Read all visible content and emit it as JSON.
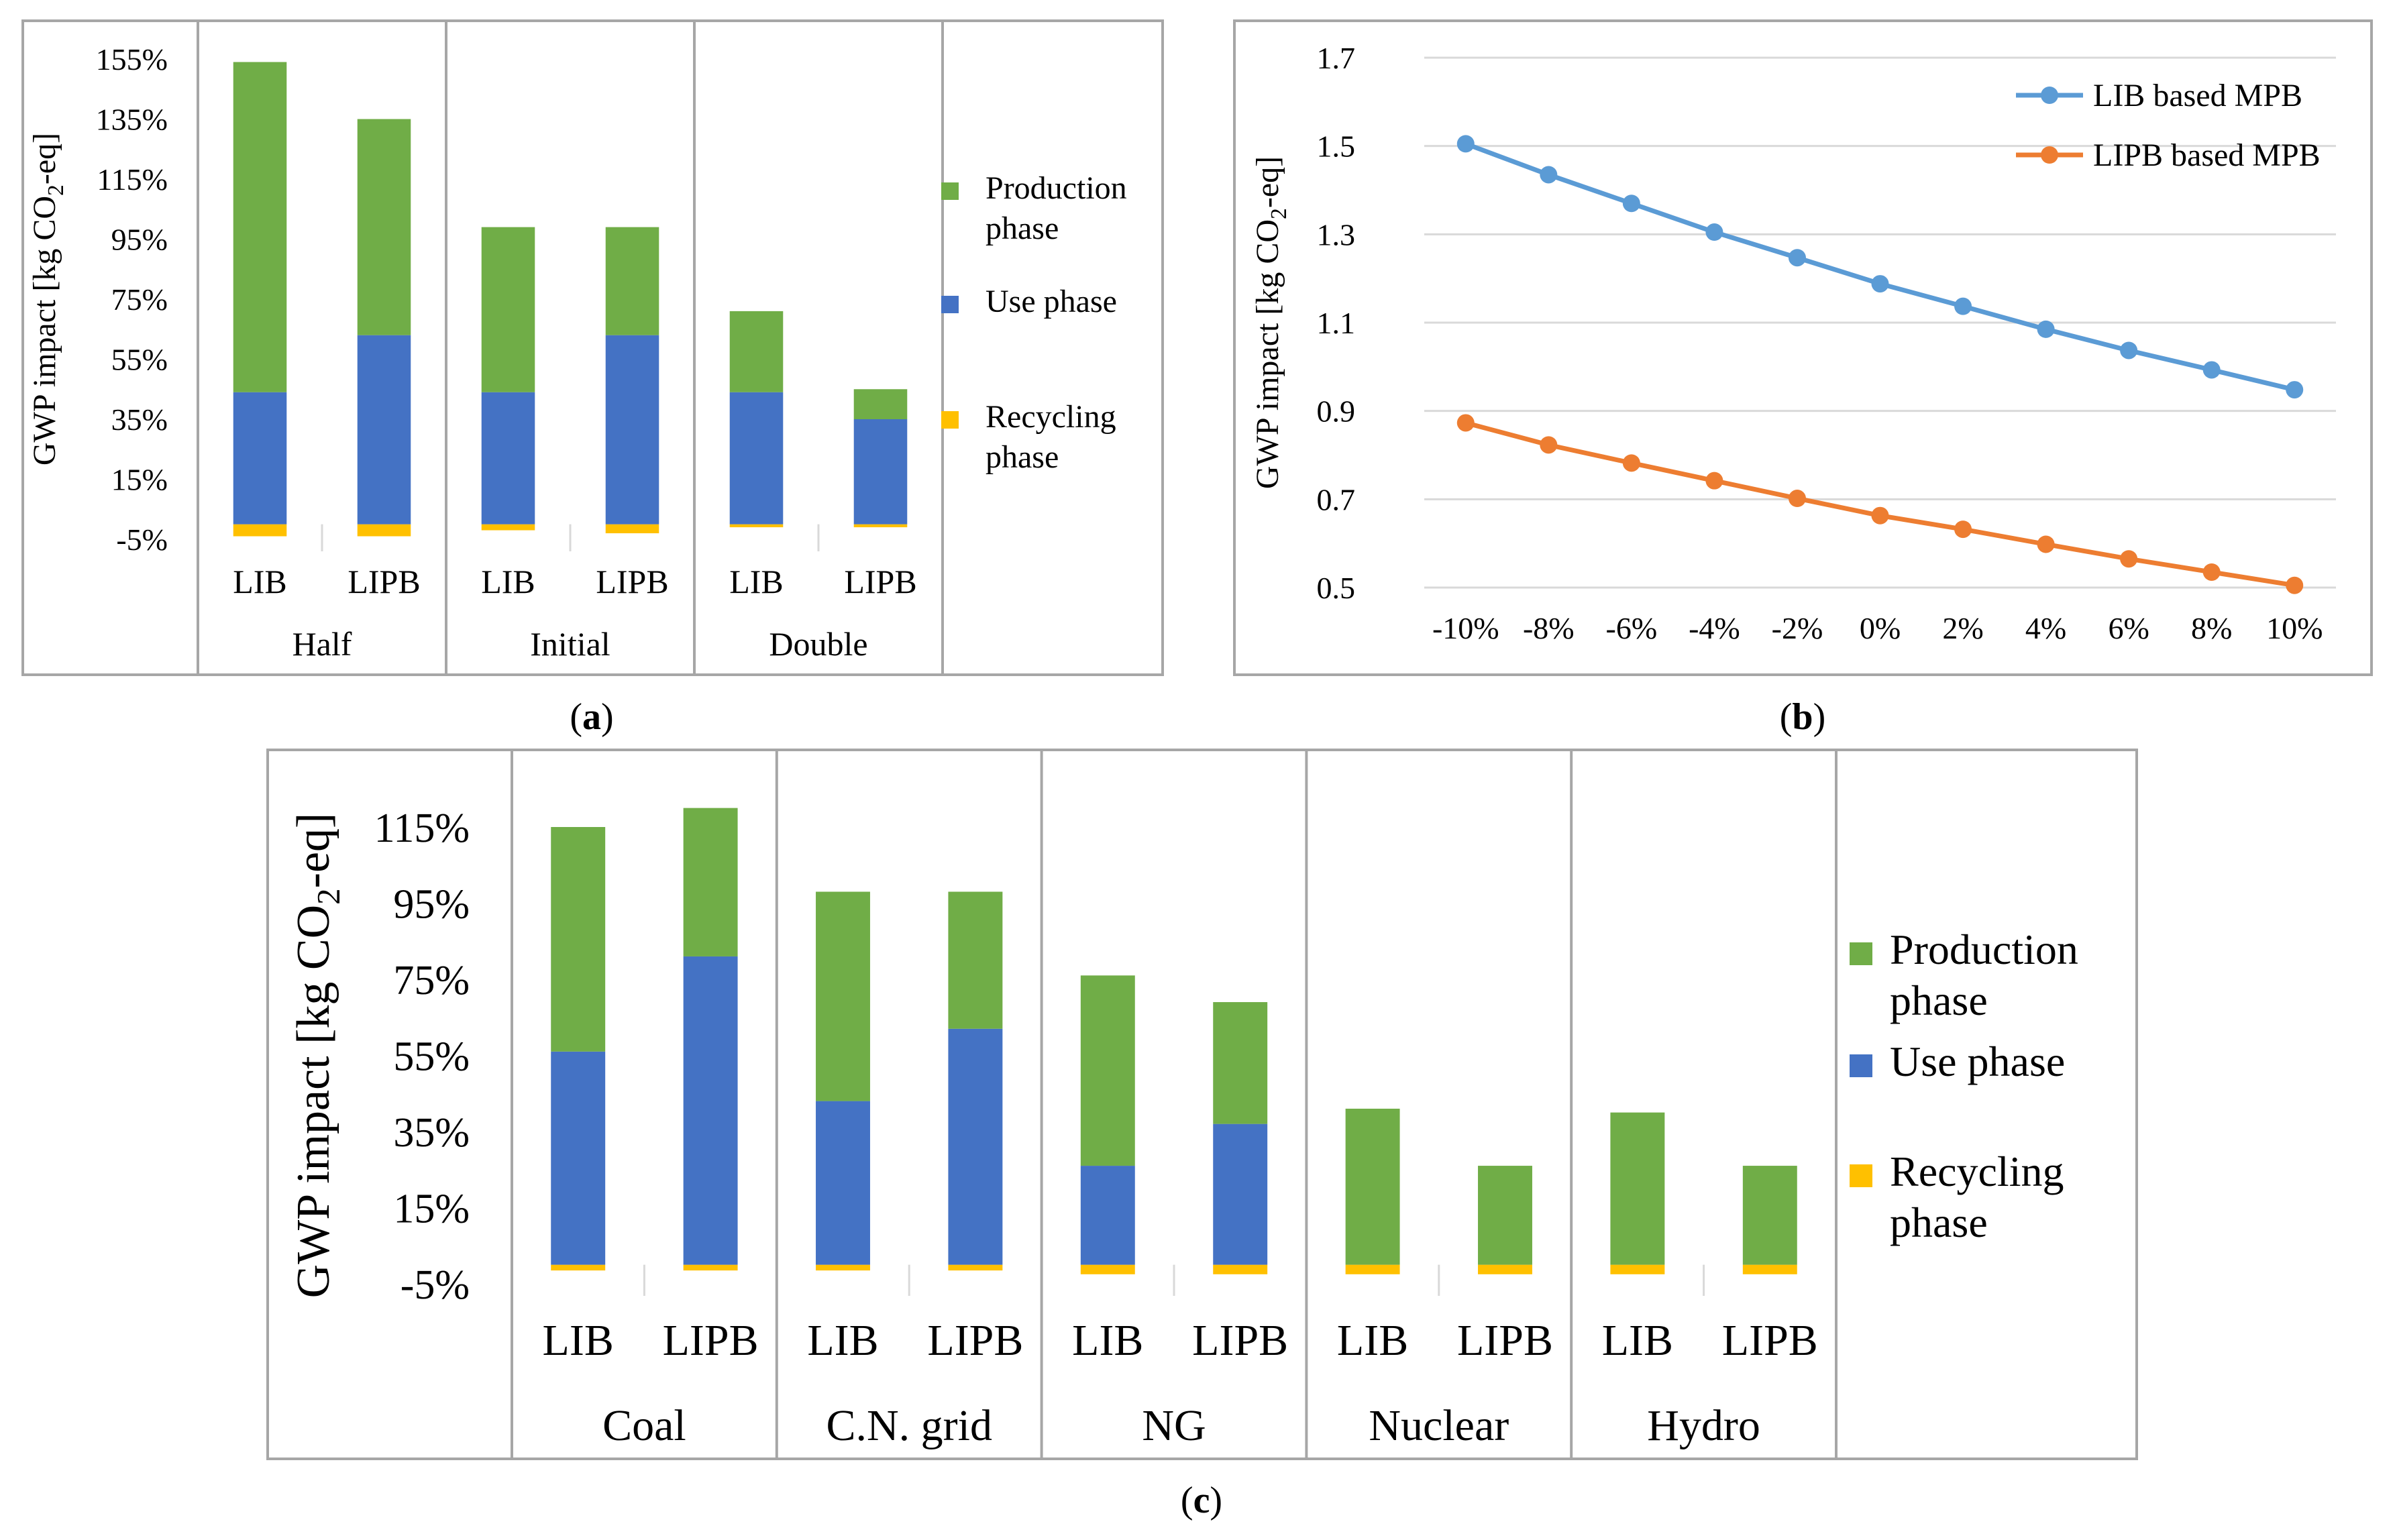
{
  "colors": {
    "production": "#70AD47",
    "use": "#4472C4",
    "recycling": "#FFC000",
    "lib_line": "#5B9BD5",
    "lipb_line": "#ED7D31",
    "grid": "#D9D9D9",
    "frame": "#A6A6A6"
  },
  "chart_data": [
    {
      "id": "a",
      "caption_letter": "a",
      "type": "bar",
      "stacked": true,
      "ylabel_pre": "GWP impact [kg CO",
      "ylabel_sub": "2",
      "ylabel_post": "-eq]",
      "yticks": [
        "155%",
        "135%",
        "115%",
        "95%",
        "75%",
        "55%",
        "35%",
        "15%",
        "-5%"
      ],
      "ytick_values": [
        155,
        135,
        115,
        95,
        75,
        55,
        35,
        15,
        -5
      ],
      "ylim": [
        -5,
        155
      ],
      "groups": [
        "Half",
        "Initial",
        "Double"
      ],
      "categories": [
        "LIB",
        "LIPB",
        "LIB",
        "LIPB",
        "LIB",
        "LIPB"
      ],
      "series": [
        {
          "name": "Recycling phase",
          "key": "recycling",
          "values": [
            -4,
            -4,
            -2,
            -3,
            -1,
            -1
          ]
        },
        {
          "name": "Use phase",
          "key": "use",
          "values": [
            44,
            63,
            44,
            63,
            44,
            35
          ]
        },
        {
          "name": "Production phase",
          "key": "production",
          "values": [
            110,
            72,
            55,
            36,
            27,
            10
          ]
        }
      ],
      "legend": [
        {
          "key": "production",
          "lines": [
            "Production",
            "phase"
          ]
        },
        {
          "key": "use",
          "lines": [
            "Use phase"
          ]
        },
        {
          "key": "recycling",
          "lines": [
            "Recycling",
            "phase"
          ]
        }
      ]
    },
    {
      "id": "b",
      "caption_letter": "b",
      "type": "line",
      "ylabel_pre": "GWP impact [kg CO",
      "ylabel_sub": "2",
      "ylabel_post": "-eq]",
      "yticks": [
        "1.7",
        "1.5",
        "1.3",
        "1.1",
        "0.9",
        "0.7",
        "0.5"
      ],
      "ytick_values": [
        1.7,
        1.5,
        1.3,
        1.1,
        0.9,
        0.7,
        0.5
      ],
      "ylim": [
        0.5,
        1.7
      ],
      "x": [
        "-10%",
        "-8%",
        "-6%",
        "-4%",
        "-2%",
        "0%",
        "2%",
        "4%",
        "6%",
        "8%",
        "10%"
      ],
      "series": [
        {
          "name": "LIB based MPB",
          "key": "lib_line",
          "values": [
            1.505,
            1.435,
            1.37,
            1.305,
            1.247,
            1.188,
            1.137,
            1.085,
            1.037,
            0.993,
            0.948
          ]
        },
        {
          "name": "LIPB based MPB",
          "key": "lipb_line",
          "values": [
            0.873,
            0.823,
            0.782,
            0.742,
            0.702,
            0.663,
            0.632,
            0.598,
            0.565,
            0.535,
            0.505
          ]
        }
      ]
    },
    {
      "id": "c",
      "caption_letter": "c",
      "type": "bar",
      "stacked": true,
      "ylabel_pre": "GWP impact [kg CO",
      "ylabel_sub": "2",
      "ylabel_post": "-eq]",
      "yticks": [
        "115%",
        "95%",
        "75%",
        "55%",
        "35%",
        "15%",
        "-5%"
      ],
      "ytick_values": [
        115,
        95,
        75,
        55,
        35,
        15,
        -5
      ],
      "ylim": [
        -5,
        115
      ],
      "groups": [
        "Coal",
        "C.N. grid",
        "NG",
        "Nuclear",
        "Hydro"
      ],
      "categories": [
        "LIB",
        "LIPB",
        "LIB",
        "LIPB",
        "LIB",
        "LIPB",
        "LIB",
        "LIPB",
        "LIB",
        "LIPB"
      ],
      "series": [
        {
          "name": "Recycling phase",
          "key": "recycling",
          "values": [
            -1.5,
            -1.5,
            -1.5,
            -1.5,
            -2.5,
            -2.5,
            -2.5,
            -2.5,
            -2.5,
            -2.5
          ]
        },
        {
          "name": "Use phase",
          "key": "use",
          "values": [
            56,
            81,
            43,
            62,
            26,
            37,
            0,
            0,
            0,
            0
          ]
        },
        {
          "name": "Production phase",
          "key": "production",
          "values": [
            59,
            39,
            55,
            36,
            50,
            32,
            41,
            26,
            40,
            26
          ]
        }
      ],
      "legend": [
        {
          "key": "production",
          "lines": [
            "Production",
            "phase"
          ]
        },
        {
          "key": "use",
          "lines": [
            "Use phase"
          ]
        },
        {
          "key": "recycling",
          "lines": [
            "Recycling",
            "phase"
          ]
        }
      ]
    }
  ]
}
